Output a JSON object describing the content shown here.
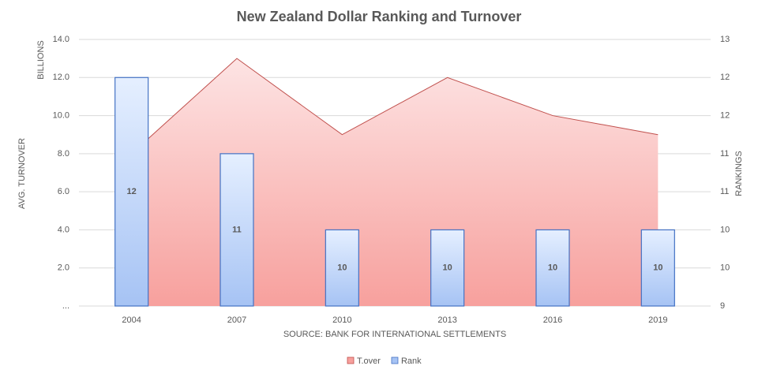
{
  "chart_data": {
    "type": "combo",
    "title": "New Zealand Dollar Ranking and Turnover",
    "y_label": "AVG. TURNOVER",
    "y_unit": "BILLIONS",
    "y2_label": "RANKINGS",
    "x_label": "SOURCE: BANK FOR INTERNATIONAL SETTLEMENTS",
    "categories": [
      "2004",
      "2007",
      "2010",
      "2013",
      "2016",
      "2019"
    ],
    "series": [
      {
        "name": "T.over",
        "type": "area",
        "color": "#c0504d",
        "values": [
          8,
          13,
          9,
          12,
          10,
          9
        ]
      },
      {
        "name": "Rank",
        "type": "bar",
        "axis": "y2",
        "color": "#4472c4",
        "values": [
          12,
          11,
          10,
          10,
          10,
          10
        ]
      }
    ],
    "ylim": [
      0,
      14
    ],
    "yticks": [
      {
        "value": 0,
        "label": "..."
      },
      {
        "value": 2,
        "label": "2.0"
      },
      {
        "value": 4,
        "label": "4.0"
      },
      {
        "value": 6,
        "label": "6.0"
      },
      {
        "value": 8,
        "label": "8.0"
      },
      {
        "value": 10,
        "label": "10.0"
      },
      {
        "value": 12,
        "label": "12.0"
      },
      {
        "value": 14,
        "label": "14.0"
      }
    ],
    "y2lim": [
      9,
      12.5
    ],
    "y2ticks": [
      9,
      {
        "value": 9.5,
        "label": "10"
      },
      10,
      {
        "value": 10.5,
        "label": "11"
      },
      11,
      {
        "value": 11.5,
        "label": "12"
      },
      12,
      {
        "value": 12.5,
        "label": "13"
      }
    ],
    "grid": true,
    "legend": "bottom"
  }
}
